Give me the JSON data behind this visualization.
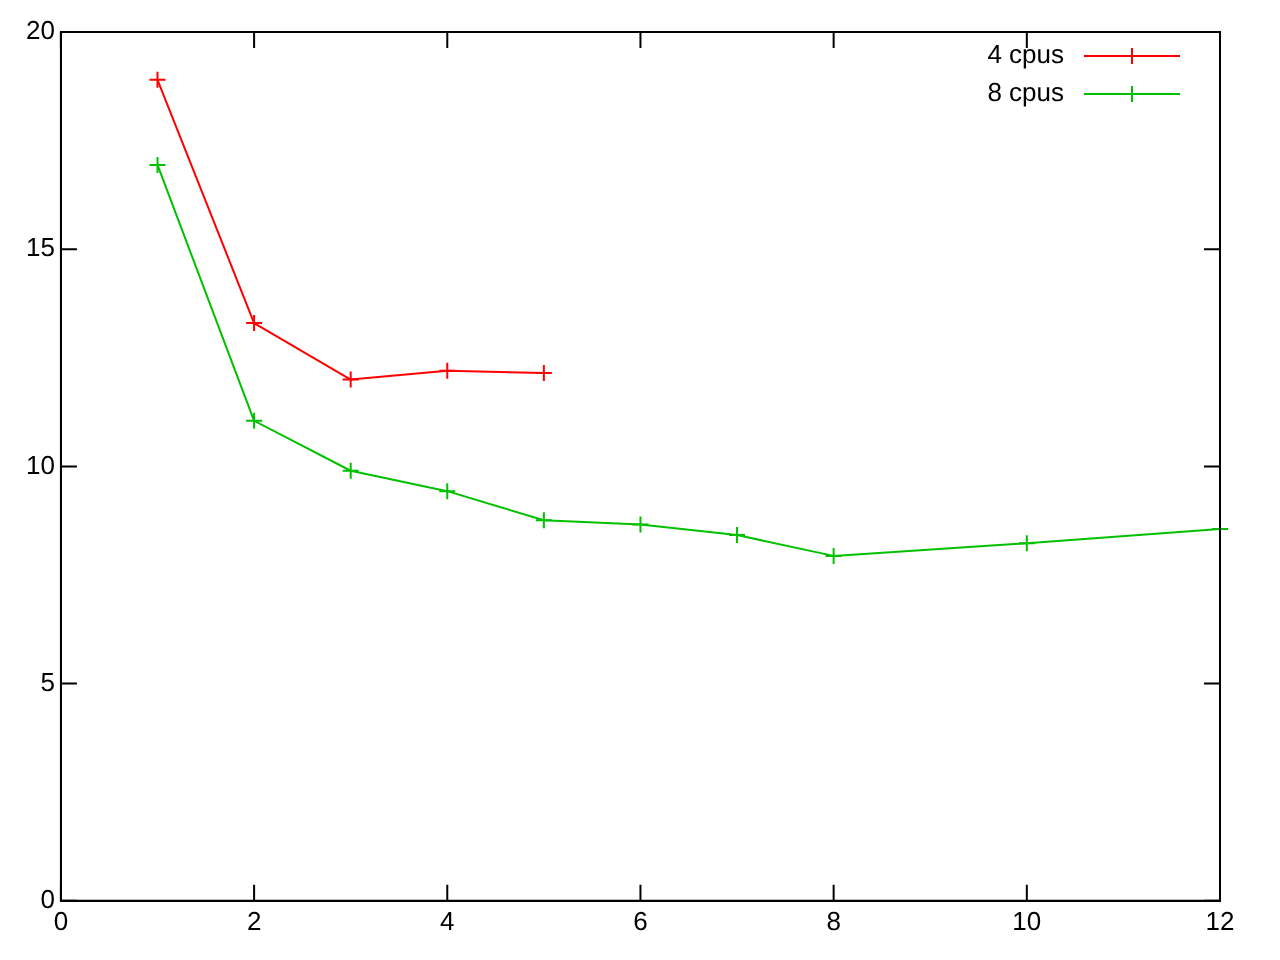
{
  "chart_data": {
    "type": "line",
    "xlim": [
      0,
      12
    ],
    "xticks": [
      0,
      2,
      4,
      6,
      8,
      10,
      12
    ],
    "ylim": [
      0,
      20
    ],
    "yticks": [
      0,
      5,
      10,
      15,
      20
    ],
    "grid": false,
    "legend": "top right",
    "marker": "cross",
    "series": [
      {
        "name": "4 cpus",
        "color": "#ff0000",
        "x": [
          1,
          2,
          3,
          4,
          5
        ],
        "values": [
          18.9,
          13.3,
          12.0,
          12.2,
          12.15
        ]
      },
      {
        "name": "8 cpus",
        "color": "#00c000",
        "x": [
          1,
          2,
          3,
          4,
          5,
          6,
          7,
          8,
          10,
          12
        ],
        "values": [
          16.94,
          11.05,
          9.9,
          9.43,
          8.76,
          8.66,
          8.42,
          7.94,
          8.23,
          8.56
        ]
      }
    ]
  }
}
